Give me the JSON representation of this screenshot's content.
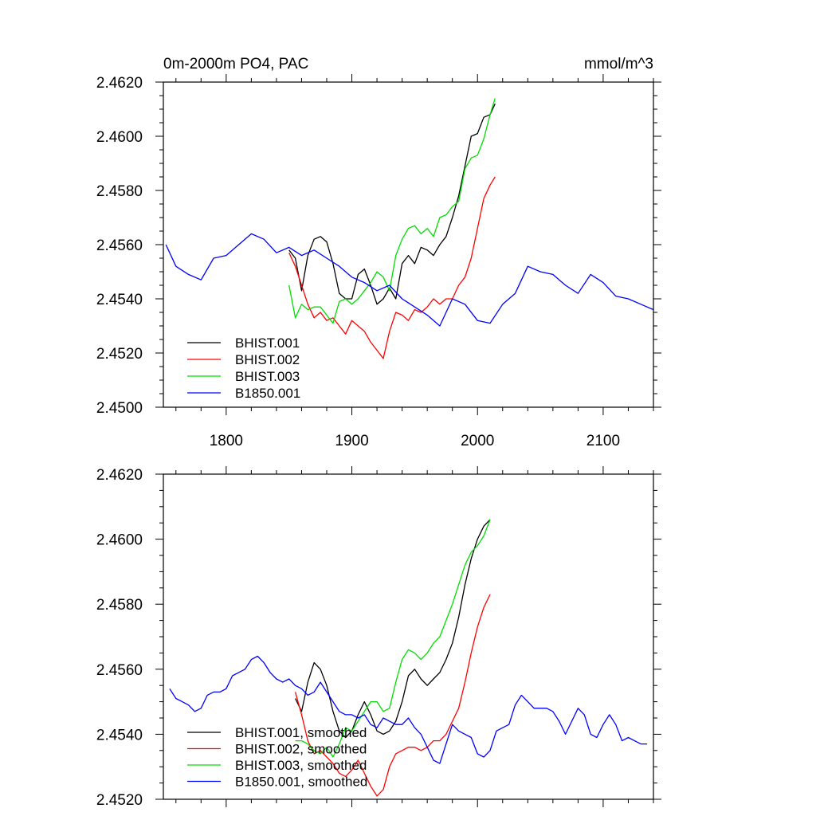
{
  "chart_data": [
    {
      "type": "line",
      "title": "0m-2000m PO4, PAC",
      "units": "mmol/m^3",
      "xlim": [
        1750,
        2140
      ],
      "ylim": [
        2.45,
        2.462
      ],
      "xticks": [
        1800,
        1900,
        2000,
        2100
      ],
      "xtick_labels": [
        "1800",
        "1900",
        "2000",
        "2100"
      ],
      "yticks": [
        2.45,
        2.452,
        2.454,
        2.456,
        2.458,
        2.46,
        2.462
      ],
      "ytick_labels": [
        "2.4500",
        "2.4520",
        "2.4540",
        "2.4560",
        "2.4580",
        "2.4600",
        "2.4620"
      ],
      "legend_position": "bottom-left",
      "series": [
        {
          "name": "BHIST.001",
          "color": "#000000",
          "x": [
            1850,
            1855,
            1860,
            1865,
            1870,
            1875,
            1880,
            1885,
            1890,
            1895,
            1900,
            1905,
            1910,
            1915,
            1920,
            1925,
            1930,
            1935,
            1940,
            1945,
            1950,
            1955,
            1960,
            1965,
            1970,
            1975,
            1980,
            1985,
            1990,
            1995,
            2000,
            2005,
            2010,
            2014
          ],
          "y": [
            2.4558,
            2.4555,
            2.4543,
            2.4556,
            2.4562,
            2.4563,
            2.4561,
            2.4553,
            2.4542,
            2.454,
            2.454,
            2.4549,
            2.4551,
            2.4545,
            2.4538,
            2.454,
            2.4544,
            2.454,
            2.4553,
            2.4556,
            2.4553,
            2.4559,
            2.4558,
            2.4556,
            2.456,
            2.4563,
            2.457,
            2.4578,
            2.4589,
            2.46,
            2.4601,
            2.4607,
            2.4608,
            2.4612
          ]
        },
        {
          "name": "BHIST.002",
          "color": "#ff0000",
          "x": [
            1850,
            1855,
            1860,
            1865,
            1870,
            1875,
            1880,
            1885,
            1890,
            1895,
            1900,
            1905,
            1910,
            1915,
            1920,
            1925,
            1930,
            1935,
            1940,
            1945,
            1950,
            1955,
            1960,
            1965,
            1970,
            1975,
            1980,
            1985,
            1990,
            1995,
            2000,
            2005,
            2010,
            2014
          ],
          "y": [
            2.4557,
            2.4552,
            2.4545,
            2.4538,
            2.4533,
            2.4535,
            2.4532,
            2.4533,
            2.453,
            2.4527,
            2.4532,
            2.453,
            2.4528,
            2.4524,
            2.4521,
            2.4518,
            2.4528,
            2.4535,
            2.4534,
            2.4532,
            2.4536,
            2.4535,
            2.4537,
            2.454,
            2.4538,
            2.454,
            2.454,
            2.4545,
            2.4548,
            2.4555,
            2.4566,
            2.4577,
            2.4582,
            2.4585
          ]
        },
        {
          "name": "BHIST.003",
          "color": "#00dd00",
          "x": [
            1850,
            1855,
            1860,
            1865,
            1870,
            1875,
            1880,
            1885,
            1890,
            1895,
            1900,
            1905,
            1910,
            1915,
            1920,
            1925,
            1930,
            1935,
            1940,
            1945,
            1950,
            1955,
            1960,
            1965,
            1970,
            1975,
            1980,
            1985,
            1990,
            1995,
            2000,
            2005,
            2010,
            2014
          ],
          "y": [
            2.4545,
            2.4533,
            2.4538,
            2.4536,
            2.4537,
            2.4537,
            2.4534,
            2.4531,
            2.4539,
            2.454,
            2.4538,
            2.454,
            2.4543,
            2.4546,
            2.455,
            2.4548,
            2.4543,
            2.4556,
            2.4562,
            2.4566,
            2.4567,
            2.4564,
            2.4566,
            2.4563,
            2.457,
            2.4571,
            2.4574,
            2.4576,
            2.4588,
            2.4592,
            2.4593,
            2.4599,
            2.4608,
            2.4614
          ]
        },
        {
          "name": "B1850.001",
          "color": "#0000ff",
          "x": [
            1752,
            1760,
            1770,
            1780,
            1790,
            1800,
            1810,
            1820,
            1830,
            1840,
            1850,
            1860,
            1870,
            1880,
            1890,
            1900,
            1910,
            1920,
            1930,
            1940,
            1950,
            1960,
            1970,
            1980,
            1990,
            2000,
            2010,
            2020,
            2030,
            2040,
            2050,
            2060,
            2070,
            2080,
            2090,
            2100,
            2110,
            2120,
            2130,
            2140
          ],
          "y": [
            2.456,
            2.4552,
            2.4549,
            2.4547,
            2.4555,
            2.4556,
            2.456,
            2.4564,
            2.4562,
            2.4557,
            2.4559,
            2.4556,
            2.4558,
            2.4555,
            2.4552,
            2.4548,
            2.4546,
            2.4543,
            2.4545,
            2.454,
            2.4537,
            2.4534,
            2.453,
            2.454,
            2.4538,
            2.4532,
            2.4531,
            2.4538,
            2.4542,
            2.4552,
            2.455,
            2.4549,
            2.4545,
            2.4542,
            2.4549,
            2.4546,
            2.4541,
            2.454,
            2.4538,
            2.4536
          ]
        }
      ]
    },
    {
      "type": "line",
      "title": "",
      "xlim": [
        1750,
        2140
      ],
      "ylim": [
        2.452,
        2.462
      ],
      "xticks": [
        1800,
        1900,
        2000,
        2100
      ],
      "yticks": [
        2.452,
        2.454,
        2.456,
        2.458,
        2.46,
        2.462
      ],
      "ytick_labels": [
        "2.4520",
        "2.4540",
        "2.4560",
        "2.4580",
        "2.4600",
        "2.4620"
      ],
      "legend_position": "bottom-left",
      "series": [
        {
          "name": "BHIST.001, smoothed",
          "color": "#000000",
          "x": [
            1855,
            1860,
            1865,
            1870,
            1875,
            1880,
            1885,
            1890,
            1895,
            1900,
            1905,
            1910,
            1915,
            1920,
            1925,
            1930,
            1935,
            1940,
            1945,
            1950,
            1955,
            1960,
            1965,
            1970,
            1975,
            1980,
            1985,
            1990,
            1995,
            2000,
            2005,
            2010
          ],
          "y": [
            2.4551,
            2.4547,
            2.4556,
            2.4562,
            2.456,
            2.4555,
            2.4547,
            2.4541,
            2.4539,
            2.4541,
            2.4546,
            2.455,
            2.4546,
            2.4541,
            2.454,
            2.4541,
            2.4544,
            2.455,
            2.4558,
            2.456,
            2.4557,
            2.4555,
            2.4557,
            2.4559,
            2.4563,
            2.4568,
            2.4576,
            2.4586,
            2.4594,
            2.46,
            2.4604,
            2.4606
          ]
        },
        {
          "name": "BHIST.002, smoothed",
          "color": "#ff0000",
          "x": [
            1855,
            1860,
            1865,
            1870,
            1875,
            1880,
            1885,
            1890,
            1895,
            1900,
            1905,
            1910,
            1915,
            1920,
            1925,
            1930,
            1935,
            1940,
            1945,
            1950,
            1955,
            1960,
            1965,
            1970,
            1975,
            1980,
            1985,
            1990,
            1995,
            2000,
            2005,
            2010
          ],
          "y": [
            2.4553,
            2.4546,
            2.4538,
            2.4534,
            2.4535,
            2.4533,
            2.4531,
            2.4528,
            2.4527,
            2.4529,
            2.4532,
            2.4528,
            2.4524,
            2.4521,
            2.4523,
            2.453,
            2.4534,
            2.4535,
            2.4536,
            2.4536,
            2.4535,
            2.4536,
            2.4538,
            2.4538,
            2.454,
            2.4544,
            2.4548,
            2.4556,
            2.4565,
            2.4573,
            2.4579,
            2.4583
          ]
        },
        {
          "name": "BHIST.003, smoothed",
          "color": "#00dd00",
          "x": [
            1855,
            1860,
            1865,
            1870,
            1875,
            1880,
            1885,
            1890,
            1895,
            1900,
            1905,
            1910,
            1915,
            1920,
            1925,
            1930,
            1935,
            1940,
            1945,
            1950,
            1955,
            1960,
            1965,
            1970,
            1975,
            1980,
            1985,
            1990,
            1995,
            2000,
            2005,
            2010
          ],
          "y": [
            2.4538,
            2.4538,
            2.4537,
            2.4535,
            2.4534,
            2.4536,
            2.4533,
            2.4537,
            2.4542,
            2.4541,
            2.4544,
            2.4547,
            2.455,
            2.455,
            2.4547,
            2.4548,
            2.4556,
            2.4563,
            2.4566,
            2.4565,
            2.4563,
            2.4565,
            2.4568,
            2.457,
            2.4575,
            2.458,
            2.4586,
            2.4592,
            2.4596,
            2.4598,
            2.4601,
            2.4606
          ]
        },
        {
          "name": "B1850.001, smoothed",
          "color": "#0000ff",
          "x": [
            1755,
            1760,
            1765,
            1770,
            1775,
            1780,
            1785,
            1790,
            1795,
            1800,
            1805,
            1810,
            1815,
            1820,
            1825,
            1830,
            1835,
            1840,
            1845,
            1850,
            1855,
            1860,
            1865,
            1870,
            1875,
            1880,
            1885,
            1890,
            1895,
            1900,
            1905,
            1910,
            1915,
            1920,
            1925,
            1930,
            1935,
            1940,
            1945,
            1950,
            1955,
            1960,
            1965,
            1970,
            1975,
            1980,
            1985,
            1990,
            1995,
            2000,
            2005,
            2010,
            2015,
            2020,
            2025,
            2030,
            2035,
            2040,
            2045,
            2050,
            2055,
            2060,
            2065,
            2070,
            2075,
            2080,
            2085,
            2090,
            2095,
            2100,
            2105,
            2110,
            2115,
            2120,
            2125,
            2130,
            2135
          ],
          "y": [
            2.4554,
            2.4551,
            2.455,
            2.4549,
            2.4547,
            2.4548,
            2.4552,
            2.4553,
            2.4553,
            2.4554,
            2.4558,
            2.4559,
            2.456,
            2.4563,
            2.4564,
            2.4562,
            2.4559,
            2.4557,
            2.4556,
            2.4557,
            2.4555,
            2.4554,
            2.4552,
            2.4553,
            2.4556,
            2.4553,
            2.455,
            2.4547,
            2.4546,
            2.4546,
            2.4545,
            2.4546,
            2.4543,
            2.4542,
            2.4545,
            2.4544,
            2.4543,
            2.4543,
            2.4545,
            2.4542,
            2.454,
            2.4536,
            2.4532,
            2.4531,
            2.4537,
            2.4543,
            2.4541,
            2.454,
            2.4539,
            2.4534,
            2.4533,
            2.4535,
            2.4541,
            2.4542,
            2.4543,
            2.4549,
            2.4552,
            2.455,
            2.4548,
            2.4548,
            2.4548,
            2.4547,
            2.4544,
            2.454,
            2.4544,
            2.4548,
            2.4546,
            2.454,
            2.4539,
            2.4543,
            2.4546,
            2.4543,
            2.4538,
            2.4539,
            2.4538,
            2.4537,
            2.4537
          ]
        }
      ]
    }
  ]
}
